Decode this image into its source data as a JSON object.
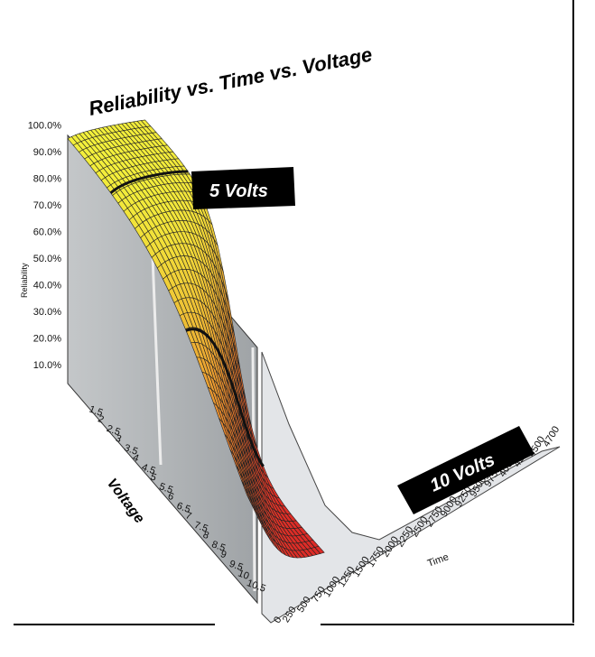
{
  "chart_data": {
    "type": "surface",
    "title": "Reliability vs. Time vs. Voltage",
    "xlabel": "Time",
    "ylabel": "Voltage",
    "zlabel": "Reliability",
    "time_ticks": [
      "0",
      "250",
      "500",
      "750",
      "1000",
      "1250",
      "1500",
      "1750",
      "2000",
      "2250",
      "2500",
      "2750",
      "9000",
      "9250",
      "9500",
      "9750",
      "4000",
      "4250",
      "4500",
      "4700"
    ],
    "voltage_ticks": [
      "1.5",
      "2",
      "2.5",
      "3",
      "3.5",
      "4",
      "4.5",
      "5",
      "5.5",
      "6",
      "6.5",
      "7",
      "7.5",
      "8",
      "8.5",
      "9",
      "9.5",
      "10",
      "10.5"
    ],
    "reliability_ticks": [
      "10.0%",
      "20.0%",
      "30.0%",
      "40.0%",
      "50.0%",
      "60.0%",
      "70.0%",
      "80.0%",
      "90.0%",
      "100.0%"
    ],
    "zlim": [
      0,
      100
    ],
    "annotations": [
      {
        "text": "5 Volts",
        "voltage": 5
      },
      {
        "text": "10 Volts",
        "voltage": 10
      }
    ],
    "surface_notes": "Reliability near 100% at low time and low voltage, falling toward 0% as time and voltage increase; sigmoidal decay along voltage.",
    "colors": {
      "high": "#f3f23c",
      "mid": "#e98a2e",
      "low": "#dd2b27",
      "wall": "#a7abad",
      "floor": "#e3e5e8"
    }
  }
}
